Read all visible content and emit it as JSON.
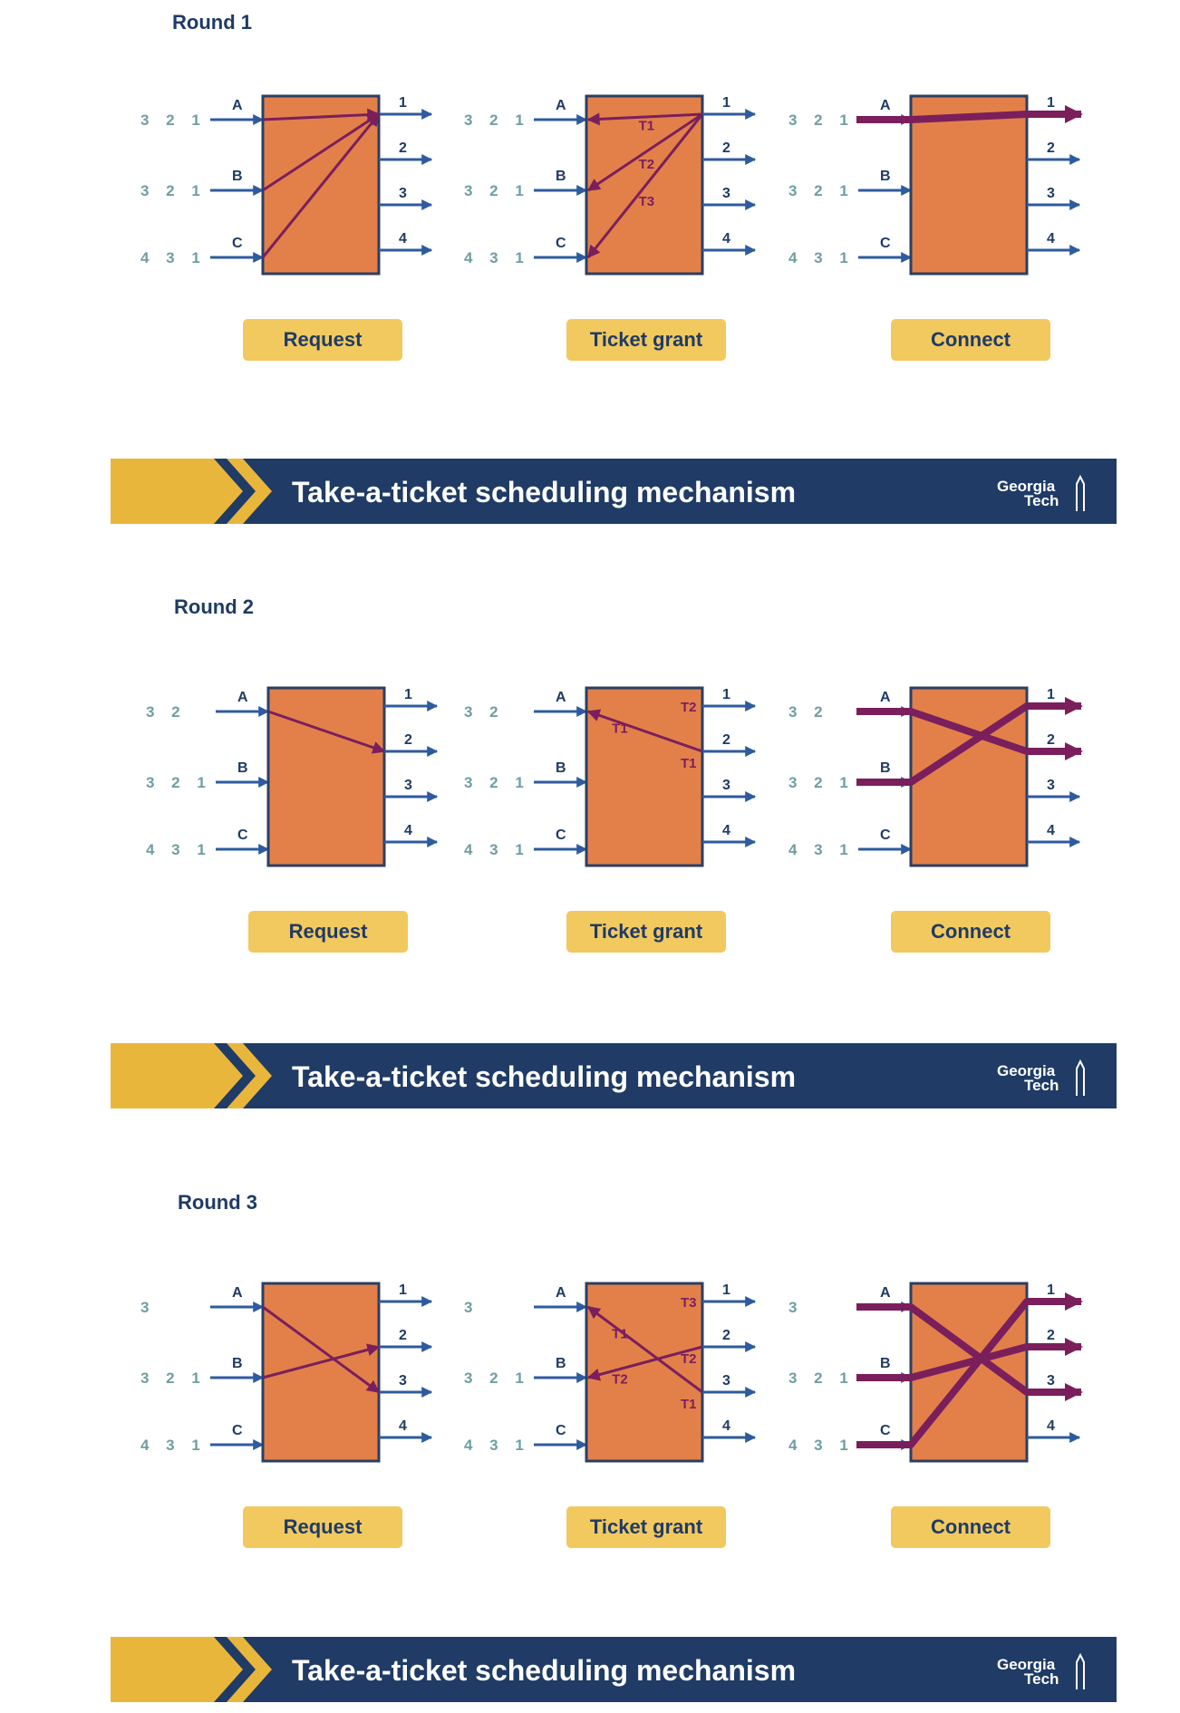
{
  "colors": {
    "navy": "#1f3b66",
    "queue_teal": "#6f9ea2",
    "switch_orange": "#e3804a",
    "switch_border": "#2b3f63",
    "arrow_blue": "#2e5b9e",
    "path_purple": "#7a1f5c",
    "button_gold": "#f2c95f",
    "banner_gold": "#e9b63c",
    "white": "#ffffff"
  },
  "rounds": [
    {
      "title": "Round 1",
      "inputs": [
        {
          "label": "A",
          "queue": "3 2 1"
        },
        {
          "label": "B",
          "queue": "3 2 1"
        },
        {
          "label": "C",
          "queue": "4 3 1"
        }
      ],
      "outputs": [
        "1",
        "2",
        "3",
        "4"
      ],
      "request": [
        [
          "A",
          "1"
        ],
        [
          "B",
          "1"
        ],
        [
          "C",
          "1"
        ]
      ],
      "tickets": [
        {
          "input": "A",
          "output": "1",
          "ticket": "T1"
        },
        {
          "input": "B",
          "output": "1",
          "ticket": "T2"
        },
        {
          "input": "C",
          "output": "1",
          "ticket": "T3"
        }
      ],
      "connections": [
        [
          "A",
          "1"
        ]
      ],
      "steps": [
        "Request",
        "Ticket grant",
        "Connect"
      ]
    },
    {
      "title": "Round 2",
      "inputs": [
        {
          "label": "A",
          "queue": "3 2"
        },
        {
          "label": "B",
          "queue": "3 2 1"
        },
        {
          "label": "C",
          "queue": "4 3 1"
        }
      ],
      "outputs": [
        "1",
        "2",
        "3",
        "4"
      ],
      "request": [
        [
          "A",
          "2"
        ]
      ],
      "tickets": [
        {
          "input": "A",
          "output": "2",
          "ticket": "T1",
          "out_ticket": "T1"
        },
        {
          "input": "",
          "output": "1",
          "ticket": "",
          "out_ticket": "T2"
        }
      ],
      "connections": [
        [
          "A",
          "2"
        ],
        [
          "B",
          "1"
        ]
      ],
      "steps": [
        "Request",
        "Ticket grant",
        "Connect"
      ]
    },
    {
      "title": "Round 3",
      "inputs": [
        {
          "label": "A",
          "queue": "3"
        },
        {
          "label": "B",
          "queue": "3 2 1"
        },
        {
          "label": "C",
          "queue": "4 3 1"
        }
      ],
      "outputs": [
        "1",
        "2",
        "3",
        "4"
      ],
      "request": [
        [
          "A",
          "3"
        ],
        [
          "B",
          "2"
        ]
      ],
      "tickets": [
        {
          "input": "A",
          "output": "3",
          "ticket": "T1",
          "out_ticket": "T1"
        },
        {
          "input": "B",
          "output": "2",
          "ticket": "T2",
          "out_ticket": "T2"
        },
        {
          "input": "",
          "output": "1",
          "ticket": "",
          "out_ticket": "T3"
        }
      ],
      "connections": [
        [
          "A",
          "3"
        ],
        [
          "B",
          "2"
        ],
        [
          "C",
          "1"
        ]
      ],
      "steps": [
        "Request",
        "Ticket grant",
        "Connect"
      ]
    }
  ],
  "banner": {
    "title": "Take-a-ticket scheduling mechanism",
    "logo_line1": "Georgia",
    "logo_line2": "Tech"
  }
}
